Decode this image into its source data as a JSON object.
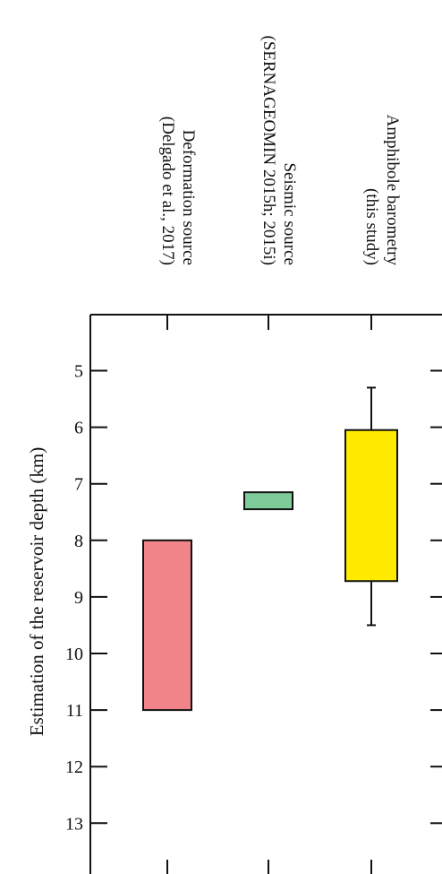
{
  "chart_data": {
    "type": "bar",
    "title": "",
    "xlabel": "",
    "ylabel": "Estimation of the reservoir depth (km)",
    "ylim": [
      4,
      14
    ],
    "y_inverted": true,
    "yticks": [
      5,
      6,
      7,
      8,
      9,
      10,
      11,
      12,
      13
    ],
    "grid": false,
    "legend": "none",
    "categories": [
      {
        "line1": "Deformation source",
        "line2": "(Delgado et al., 2017)"
      },
      {
        "line1": "Seismic source",
        "line2": "(SERNAGEOMIN 2015h; 2015i)"
      },
      {
        "line1": "Amphibole barometry",
        "line2": "(this study)"
      }
    ],
    "ranges": [
      {
        "low": 8.0,
        "high": 11.0,
        "color": "#f08489"
      },
      {
        "low": 7.15,
        "high": 7.45,
        "color": "#7fcc9b"
      },
      {
        "low": 6.05,
        "high": 8.72,
        "whisker_low": 5.3,
        "whisker_high": 9.5,
        "color": "#ffea00"
      }
    ]
  }
}
